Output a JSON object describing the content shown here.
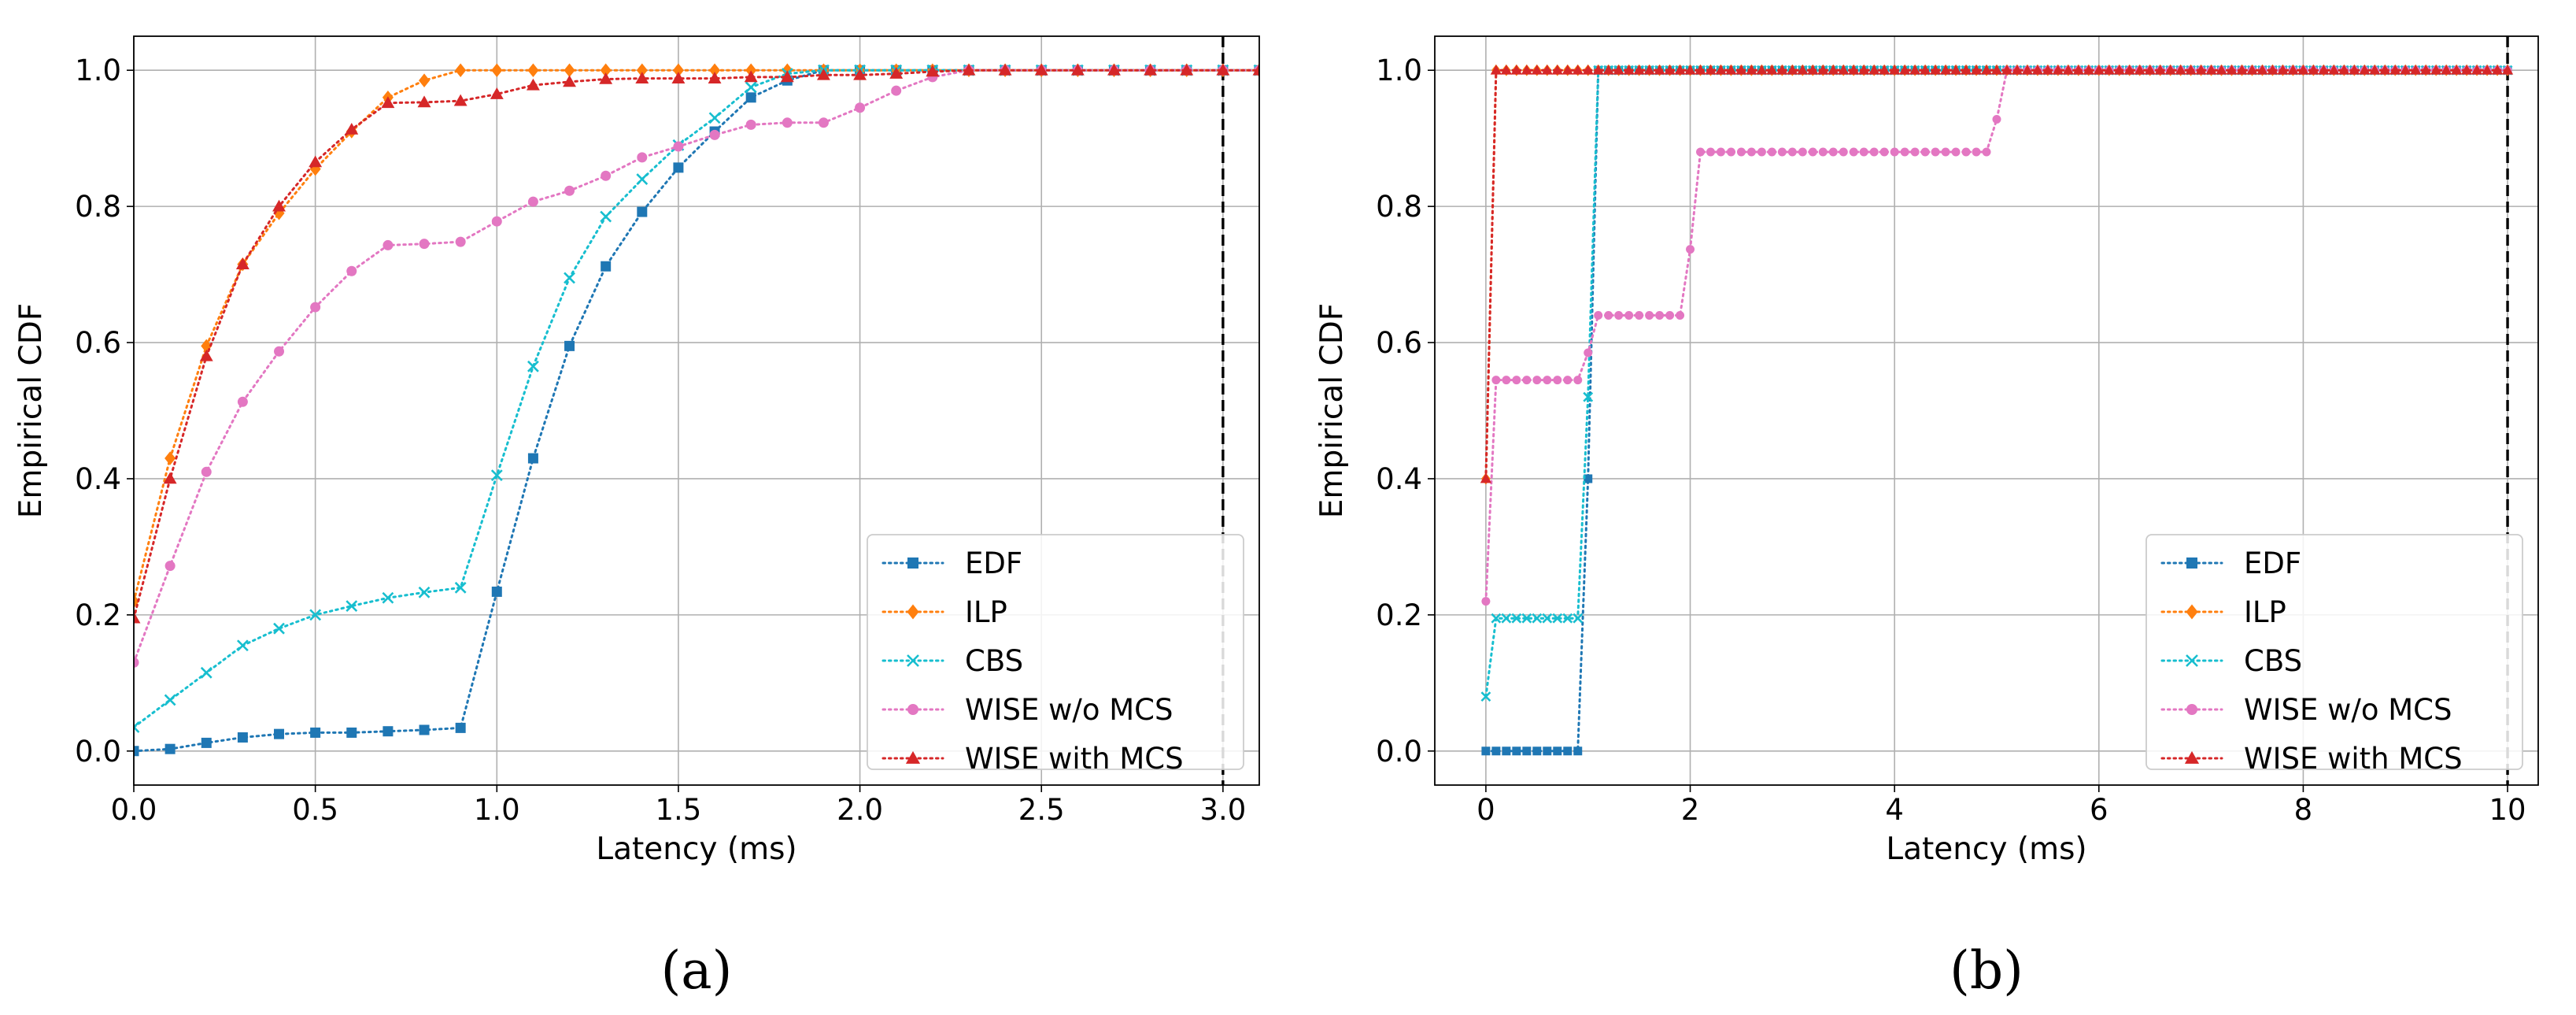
{
  "figure": {
    "series_styles": [
      {
        "name": "EDF",
        "color": "#1f77b4",
        "marker": "square"
      },
      {
        "name": "ILP",
        "color": "#ff7f0e",
        "marker": "diamond"
      },
      {
        "name": "CBS",
        "color": "#17becf",
        "marker": "x"
      },
      {
        "name": "WISE w/o MCS",
        "color": "#e377c2",
        "marker": "circle"
      },
      {
        "name": "WISE with MCS",
        "color": "#d62728",
        "marker": "triangle"
      }
    ]
  },
  "chart_data": [
    {
      "type": "line",
      "panel_label": "(a)",
      "xlabel": "Latency (ms)",
      "ylabel": "Empirical CDF",
      "xlim": [
        0,
        3.1
      ],
      "ylim": [
        -0.05,
        1.05
      ],
      "xticks": [
        0.0,
        0.5,
        1.0,
        1.5,
        2.0,
        2.5,
        3.0
      ],
      "xtick_labels": [
        "0.0",
        "0.5",
        "1.0",
        "1.5",
        "2.0",
        "2.5",
        "3.0"
      ],
      "yticks": [
        0.0,
        0.2,
        0.4,
        0.6,
        0.8,
        1.0
      ],
      "ytick_labels": [
        "0.0",
        "0.2",
        "0.4",
        "0.6",
        "0.8",
        "1.0"
      ],
      "grid": true,
      "legend_position": "lower-right",
      "deadline_x": 3.0,
      "x": [
        0,
        0.1,
        0.2,
        0.3,
        0.4,
        0.5,
        0.6,
        0.7,
        0.8,
        0.9,
        1.0,
        1.1,
        1.2,
        1.3,
        1.4,
        1.5,
        1.6,
        1.7,
        1.8,
        1.9,
        2.0,
        2.1,
        2.2,
        2.3,
        2.4,
        2.5,
        2.6,
        2.7,
        2.8,
        2.9,
        3.0,
        3.1
      ],
      "series": [
        {
          "name": "EDF",
          "values": [
            0.0,
            0.003,
            0.012,
            0.02,
            0.025,
            0.027,
            0.027,
            0.029,
            0.031,
            0.034,
            0.234,
            0.43,
            0.595,
            0.712,
            0.792,
            0.857,
            0.91,
            0.96,
            0.985,
            1.0,
            1.0,
            1.0,
            1.0,
            1.0,
            1.0,
            1.0,
            1.0,
            1.0,
            1.0,
            1.0,
            1.0,
            1.0
          ]
        },
        {
          "name": "ILP",
          "values": [
            0.22,
            0.43,
            0.595,
            0.715,
            0.79,
            0.855,
            0.91,
            0.96,
            0.985,
            1.0,
            1.0,
            1.0,
            1.0,
            1.0,
            1.0,
            1.0,
            1.0,
            1.0,
            1.0,
            1.0,
            1.0,
            1.0,
            1.0,
            1.0,
            1.0,
            1.0,
            1.0,
            1.0,
            1.0,
            1.0,
            1.0,
            1.0
          ]
        },
        {
          "name": "CBS",
          "values": [
            0.035,
            0.075,
            0.115,
            0.155,
            0.18,
            0.2,
            0.213,
            0.225,
            0.233,
            0.24,
            0.405,
            0.565,
            0.695,
            0.785,
            0.84,
            0.89,
            0.93,
            0.975,
            0.995,
            1.0,
            1.0,
            1.0,
            1.0,
            1.0,
            1.0,
            1.0,
            1.0,
            1.0,
            1.0,
            1.0,
            1.0,
            1.0
          ]
        },
        {
          "name": "WISE w/o MCS",
          "values": [
            0.13,
            0.272,
            0.41,
            0.513,
            0.587,
            0.652,
            0.705,
            0.743,
            0.745,
            0.748,
            0.778,
            0.807,
            0.823,
            0.845,
            0.872,
            0.888,
            0.905,
            0.92,
            0.923,
            0.923,
            0.945,
            0.97,
            0.99,
            1.0,
            1.0,
            1.0,
            1.0,
            1.0,
            1.0,
            1.0,
            1.0,
            1.0
          ]
        },
        {
          "name": "WISE with MCS",
          "values": [
            0.195,
            0.4,
            0.58,
            0.715,
            0.8,
            0.865,
            0.913,
            0.952,
            0.953,
            0.955,
            0.965,
            0.978,
            0.983,
            0.987,
            0.988,
            0.988,
            0.988,
            0.99,
            0.99,
            0.993,
            0.993,
            0.995,
            0.998,
            1.0,
            1.0,
            1.0,
            1.0,
            1.0,
            1.0,
            1.0,
            1.0,
            1.0
          ]
        }
      ]
    },
    {
      "type": "line",
      "panel_label": "(b)",
      "xlabel": "Latency (ms)",
      "ylabel": "Empirical CDF",
      "xlim": [
        -0.5,
        10.3
      ],
      "ylim": [
        -0.05,
        1.05
      ],
      "xticks": [
        0,
        2,
        4,
        6,
        8,
        10
      ],
      "xtick_labels": [
        "0",
        "2",
        "4",
        "6",
        "8",
        "10"
      ],
      "yticks": [
        0.0,
        0.2,
        0.4,
        0.6,
        0.8,
        1.0
      ],
      "ytick_labels": [
        "0.0",
        "0.2",
        "0.4",
        "0.6",
        "0.8",
        "1.0"
      ],
      "grid": true,
      "legend_position": "lower-right",
      "deadline_x": 10,
      "x_start": 0,
      "x_step": 0.1,
      "x_end": 10,
      "series": [
        {
          "name": "EDF",
          "steps": [
            [
              0,
              0.0
            ],
            [
              1.0,
              0.4
            ],
            [
              1.1,
              1.0
            ]
          ]
        },
        {
          "name": "ILP",
          "steps": [
            [
              0,
              0.4
            ],
            [
              0.1,
              1.0
            ]
          ]
        },
        {
          "name": "CBS",
          "steps": [
            [
              0,
              0.08
            ],
            [
              0.1,
              0.195
            ],
            [
              1.0,
              0.52
            ],
            [
              1.1,
              1.0
            ]
          ]
        },
        {
          "name": "WISE w/o MCS",
          "steps": [
            [
              0,
              0.22
            ],
            [
              0.1,
              0.545
            ],
            [
              1.0,
              0.585
            ],
            [
              1.1,
              0.64
            ],
            [
              2.0,
              0.737
            ],
            [
              2.1,
              0.88
            ],
            [
              5.0,
              0.928
            ],
            [
              5.1,
              1.0
            ]
          ]
        },
        {
          "name": "WISE with MCS",
          "steps": [
            [
              0,
              0.4
            ],
            [
              0.1,
              1.0
            ]
          ]
        }
      ]
    }
  ]
}
